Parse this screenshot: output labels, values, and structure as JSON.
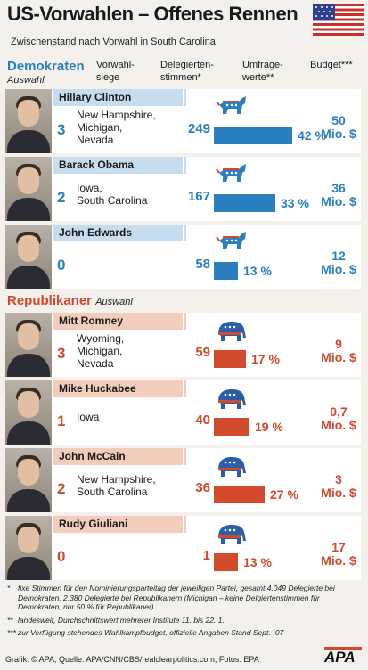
{
  "title": "US-Vorwahlen – Offenes Rennen",
  "subtitle": "Zwischenstand nach Vorwahl in South Carolina",
  "colors": {
    "democrat": "#2a7fc0",
    "republican": "#d2492c",
    "dem_name_bg": "#c6dcef",
    "rep_name_bg": "#f3cdbb"
  },
  "columns": {
    "wins": "Vorwahl-\nsiege",
    "delegates": "Delegierten-\nstimmen*",
    "polls": "Umfrage-\nwerte**",
    "budget": "Budget***"
  },
  "parties": {
    "dem": {
      "label": "Demokraten",
      "sub": "Auswahl"
    },
    "rep": {
      "label": "Republikaner",
      "sub": "Auswahl"
    }
  },
  "chart_data": {
    "type": "bar",
    "title": "US-Vorwahlen – Offenes Rennen",
    "subtitle": "Zwischenstand nach Vorwahl in South Carolina",
    "xlabel": "",
    "ylabel": "Umfragewerte**",
    "units": "%",
    "categories": [
      "Hillary Clinton",
      "Barack Obama",
      "John Edwards",
      "Mitt Romney",
      "Mike Huckabee",
      "John McCain",
      "Rudy Giuliani"
    ],
    "series": [
      {
        "name": "Umfragewerte**",
        "values": [
          42,
          33,
          13,
          17,
          19,
          27,
          13
        ]
      },
      {
        "name": "Delegiertenstimmen*",
        "values": [
          249,
          167,
          58,
          59,
          40,
          36,
          1
        ]
      },
      {
        "name": "Vorwahlsiege",
        "values": [
          3,
          2,
          0,
          3,
          1,
          2,
          0
        ]
      },
      {
        "name": "Budget***",
        "values": [
          50,
          36,
          12,
          9,
          0.7,
          3,
          17
        ]
      }
    ],
    "candidates": [
      {
        "party": "dem",
        "name": "Hillary Clinton",
        "wins": "3",
        "states": [
          "New Hampshire,",
          "Michigan,",
          "Nevada"
        ],
        "delegates": 249,
        "poll": 42,
        "poll_label": "42 %",
        "budget": "50",
        "budget_unit": "Mio. $"
      },
      {
        "party": "dem",
        "name": "Barack Obama",
        "wins": "2",
        "states": [
          "Iowa,",
          "South Carolina"
        ],
        "delegates": 167,
        "poll": 33,
        "poll_label": "33 %",
        "budget": "36",
        "budget_unit": "Mio. $"
      },
      {
        "party": "dem",
        "name": "John Edwards",
        "wins": "0",
        "states": [],
        "delegates": 58,
        "poll": 13,
        "poll_label": "13 %",
        "budget": "12",
        "budget_unit": "Mio. $"
      },
      {
        "party": "rep",
        "name": "Mitt Romney",
        "wins": "3",
        "states": [
          "Wyoming,",
          "Michigan,",
          "Nevada"
        ],
        "delegates": 59,
        "poll": 17,
        "poll_label": "17 %",
        "budget": "9",
        "budget_unit": "Mio. $"
      },
      {
        "party": "rep",
        "name": "Mike Huckabee",
        "wins": "1",
        "states": [
          "Iowa"
        ],
        "delegates": 40,
        "poll": 19,
        "poll_label": "19 %",
        "budget": "0,7",
        "budget_unit": "Mio. $"
      },
      {
        "party": "rep",
        "name": "John McCain",
        "wins": "2",
        "states": [
          "New Hampshire,",
          "South Carolina"
        ],
        "delegates": 36,
        "poll": 27,
        "poll_label": "27 %",
        "budget": "3",
        "budget_unit": "Mio. $"
      },
      {
        "party": "rep",
        "name": "Rudy Giuliani",
        "wins": "0",
        "states": [],
        "delegates": 1,
        "poll": 13,
        "poll_label": "13 %",
        "budget": "17",
        "budget_unit": "Mio. $"
      }
    ]
  },
  "footnotes": [
    {
      "mark": "*",
      "text": "fixe Stimmen für den Nominierungsparteitag der jeweiligen Partei, gesamt 4.049 Delegierte bei Demokraten, 2.380 Delegierte bei Republikanern (Michigan – keine Delgiertenstimmen für Demokraten, nur 50 % für Republikaner)"
    },
    {
      "mark": "**",
      "text": "landesweit, Durchschnittswert mehrerer Institute 11. bis 22. 1."
    },
    {
      "mark": "***",
      "text": "zur Verfügung stehendes Wahlkampfbudget, offizielle Angaben Stand Sept. ´07"
    }
  ],
  "credit": "Grafik: © APA, Quelle: APA/CNN/CBS/realclearpolitics.com, Fotos: EPA",
  "logo": "APA",
  "icons": {
    "flag": "us-flag-icon",
    "dem_symbol": "donkey-icon",
    "rep_symbol": "elephant-icon"
  }
}
